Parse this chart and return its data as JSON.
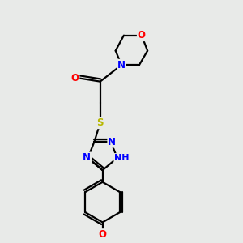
{
  "background_color": "#e8eae8",
  "bond_color": "#000000",
  "bond_width": 1.6,
  "atom_colors": {
    "O": "#ff0000",
    "N": "#0000ff",
    "S": "#b8b800",
    "H": "#4a9090",
    "C": "#000000"
  },
  "font_size": 8.5,
  "figsize": [
    3.0,
    3.0
  ],
  "dpi": 100
}
